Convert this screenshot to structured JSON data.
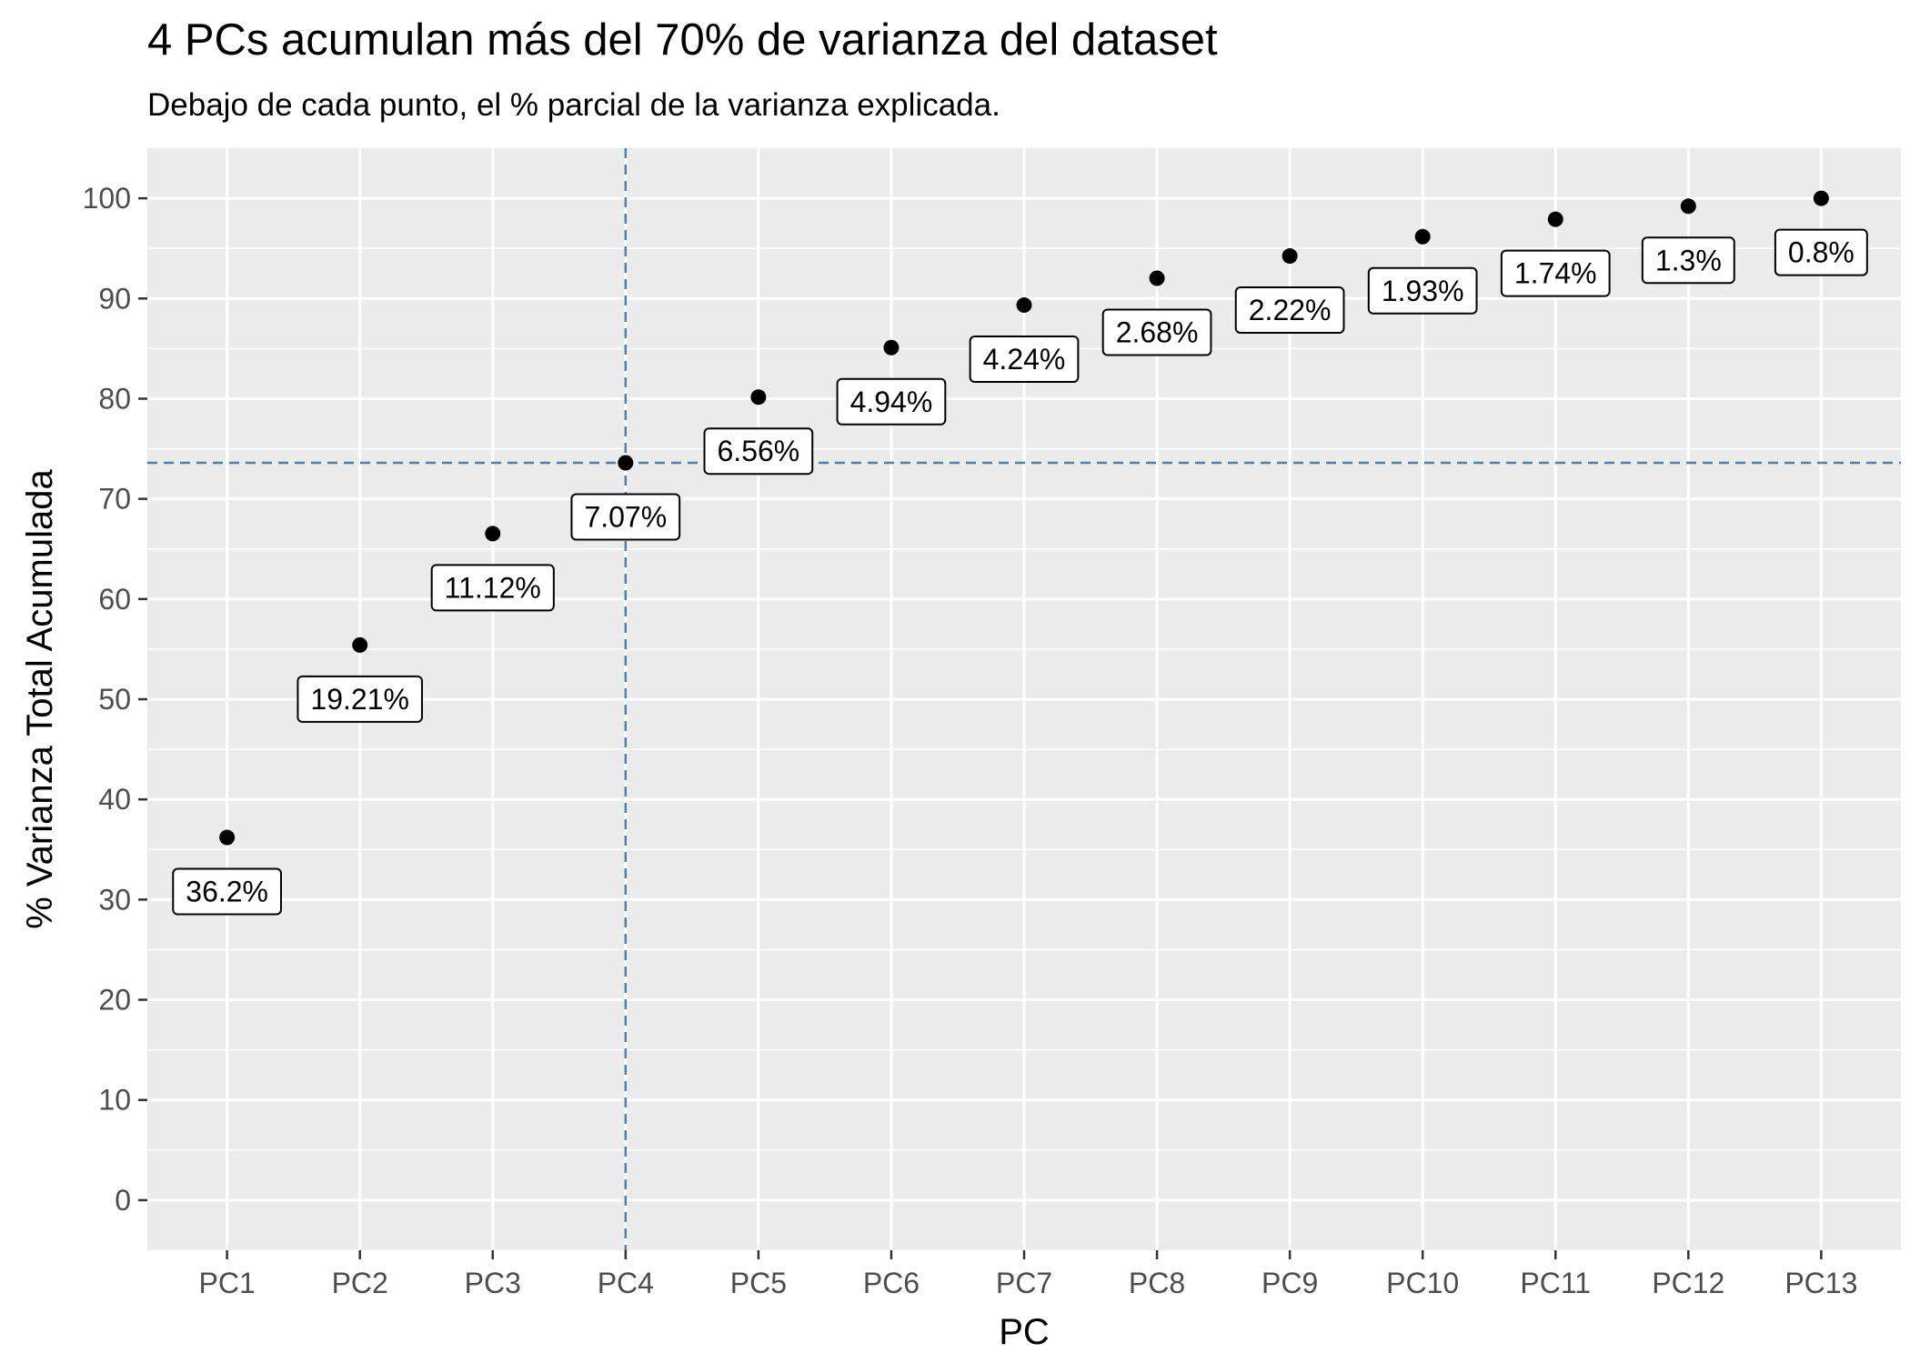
{
  "chart_data": {
    "type": "scatter",
    "title": "4 PCs acumulan más del 70% de varianza del dataset",
    "subtitle": "Debajo de cada punto, el % parcial de la varianza explicada.",
    "xlabel": "PC",
    "ylabel": "% Varianza Total Acumulada",
    "categories": [
      "PC1",
      "PC2",
      "PC3",
      "PC4",
      "PC5",
      "PC6",
      "PC7",
      "PC8",
      "PC9",
      "PC10",
      "PC11",
      "PC12",
      "PC13"
    ],
    "values": [
      36.2,
      55.41,
      66.53,
      73.6,
      80.16,
      85.1,
      89.34,
      92.02,
      94.24,
      96.17,
      97.91,
      99.21,
      100.0
    ],
    "point_labels": [
      "36.2%",
      "19.21%",
      "11.12%",
      "7.07%",
      "6.56%",
      "4.94%",
      "4.24%",
      "2.68%",
      "2.22%",
      "1.93%",
      "1.74%",
      "1.3%",
      "0.8%"
    ],
    "ylim": [
      -5,
      105
    ],
    "yticks": [
      0,
      10,
      20,
      30,
      40,
      50,
      60,
      70,
      80,
      90,
      100
    ],
    "grid": true,
    "legend": "none",
    "reference_lines": {
      "vertical_category": "PC4",
      "horizontal_value": 73.6,
      "style": "dashed",
      "color": "#4682b4"
    },
    "colors": {
      "panel_background": "#ebebeb",
      "grid": "#ffffff",
      "points": "#000000"
    }
  }
}
